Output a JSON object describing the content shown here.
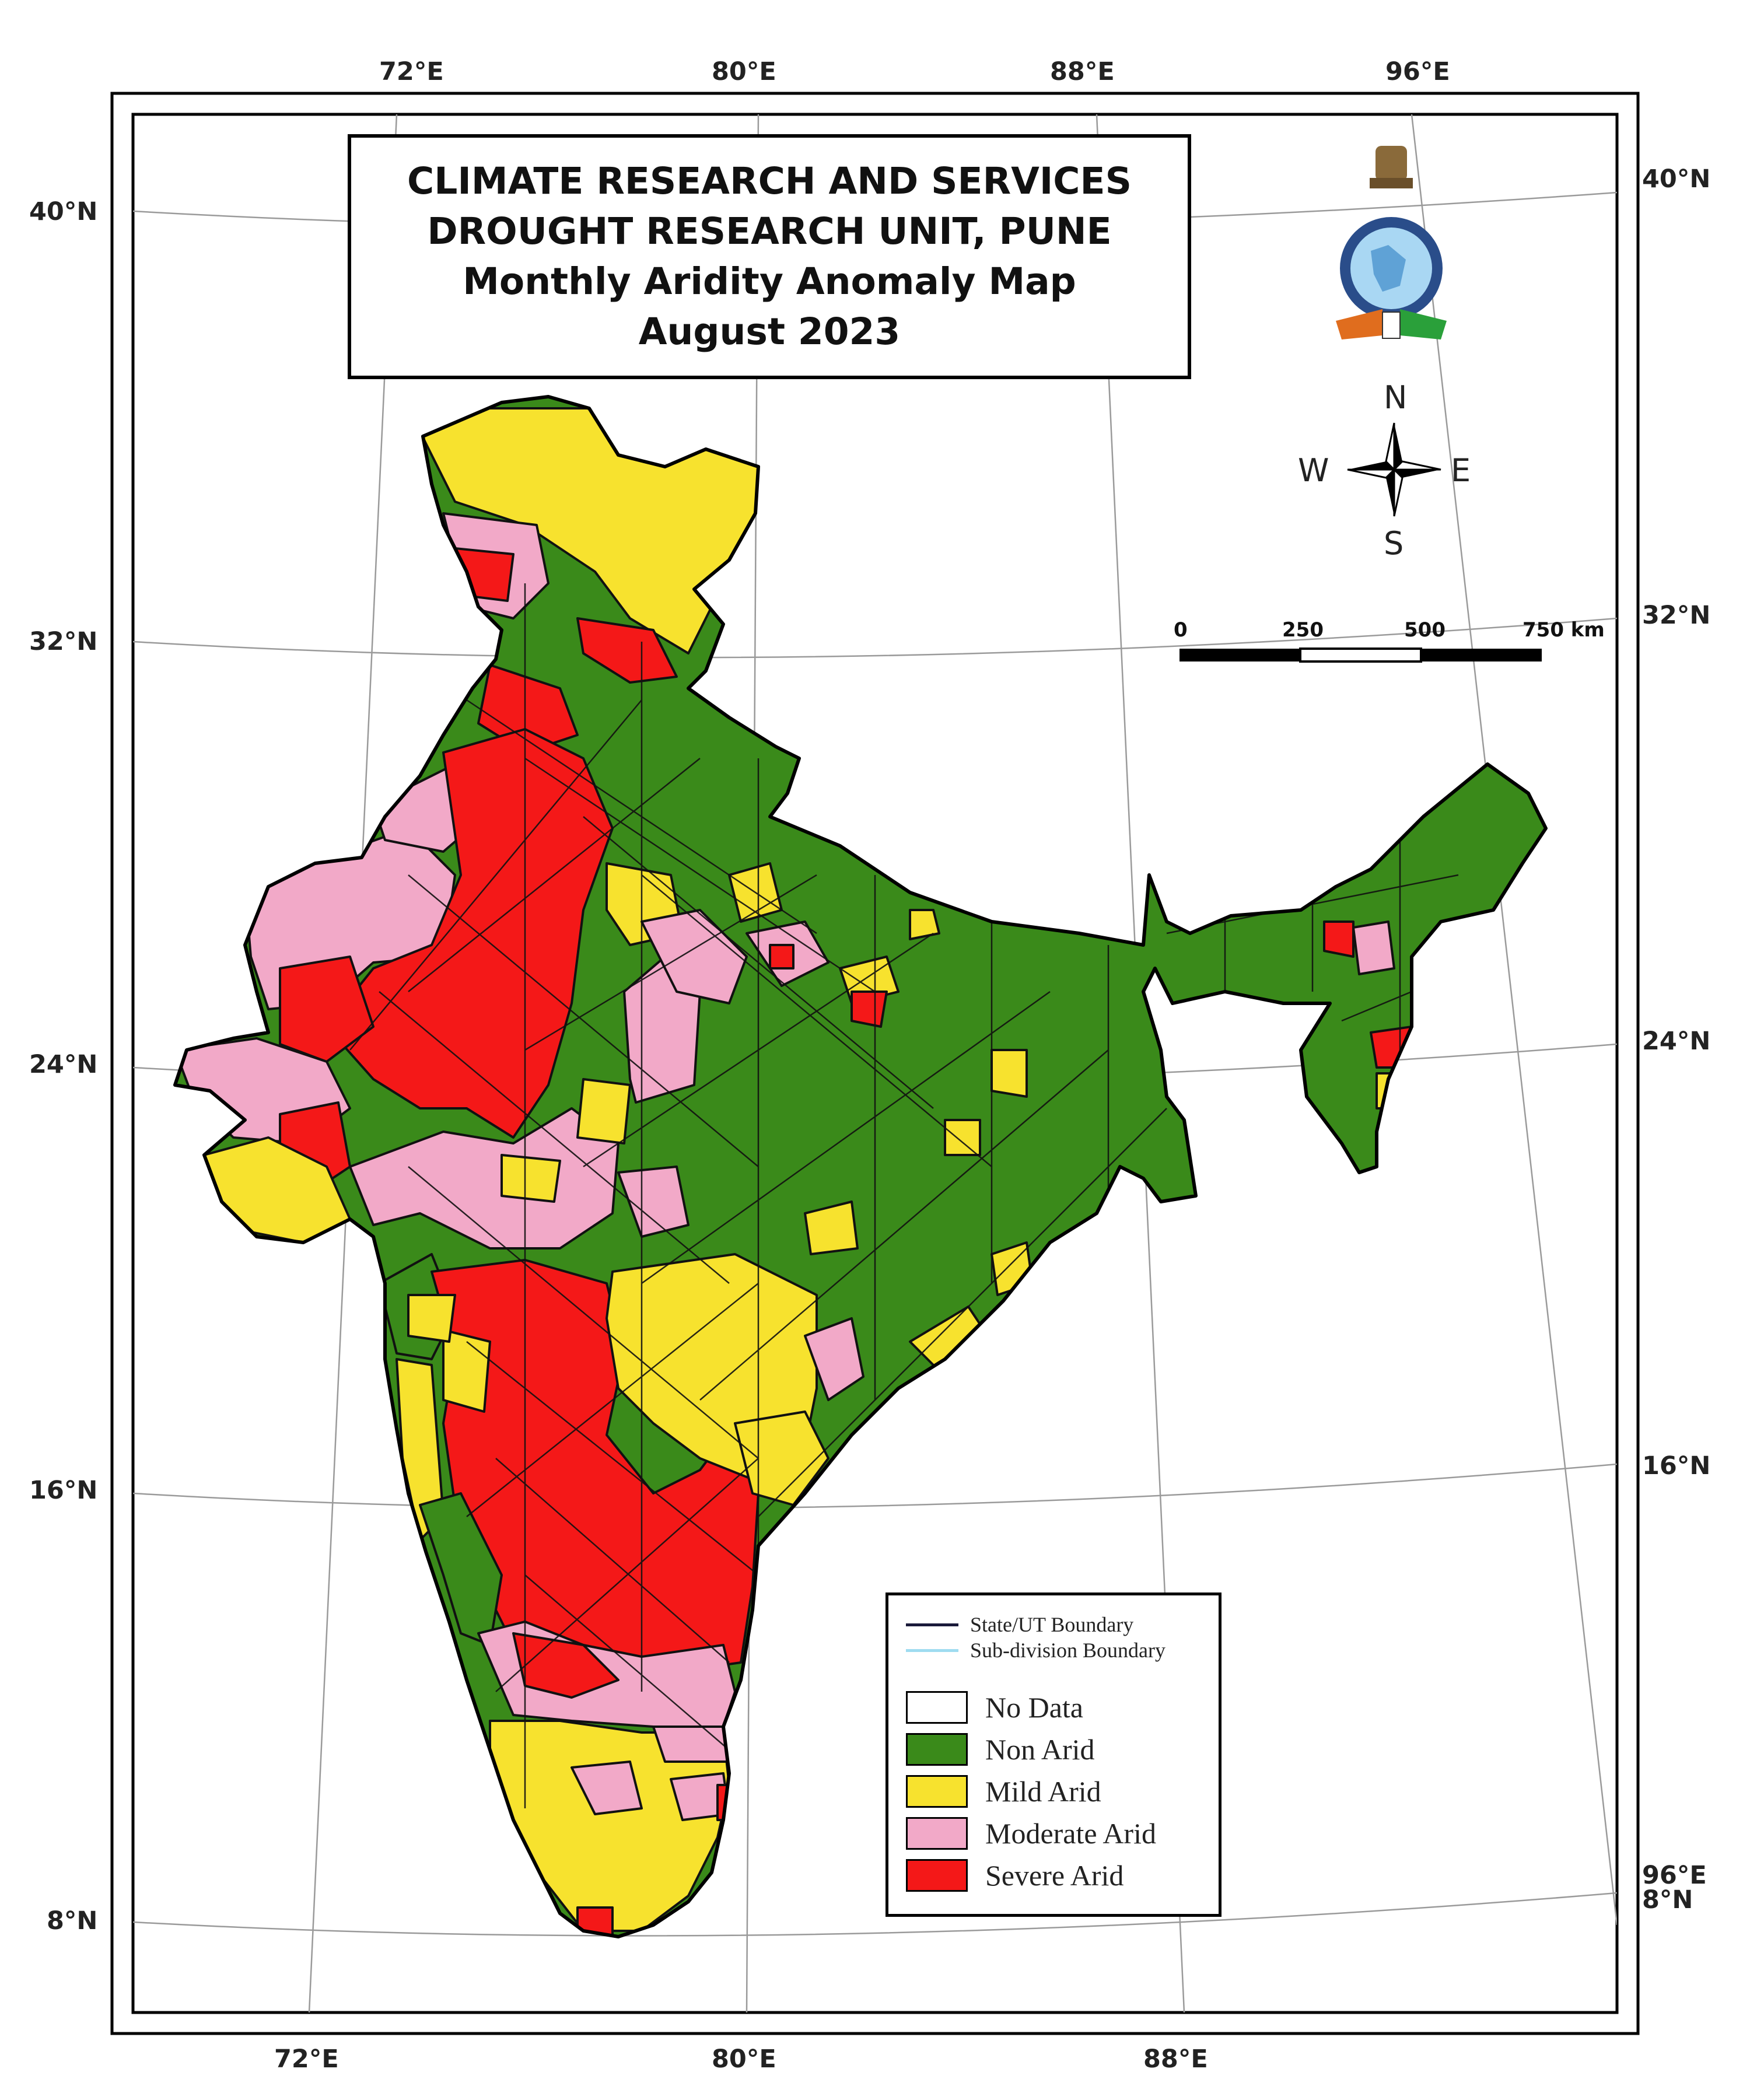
{
  "title": {
    "line1": "CLIMATE RESEARCH AND SERVICES",
    "line2": "DROUGHT RESEARCH UNIT, PUNE",
    "line3": "Monthly Aridity Anomaly Map",
    "line4": "August 2023"
  },
  "graticule": {
    "top_longitudes": [
      "72°E",
      "80°E",
      "88°E",
      "96°E"
    ],
    "bottom_longitudes": [
      "72°E",
      "80°E",
      "88°E"
    ],
    "left_latitudes": [
      "40°N",
      "32°N",
      "24°N",
      "16°N",
      "8°N"
    ],
    "right_latitudes": [
      "40°N",
      "32°N",
      "24°N",
      "16°N",
      "8°N"
    ],
    "right_extra_longitude": "96°E"
  },
  "compass": {
    "n": "N",
    "s": "S",
    "e": "E",
    "w": "W"
  },
  "scale_bar": {
    "labels": [
      "0",
      "250",
      "500",
      "750 km"
    ]
  },
  "legend": {
    "lines": [
      {
        "label": "State/UT Boundary",
        "color": "#1a1a3a"
      },
      {
        "label": "Sub-division Boundary",
        "color": "#9fdcf0"
      }
    ],
    "classes": [
      {
        "label": "No Data",
        "color": "#ffffff"
      },
      {
        "label": "Non Arid",
        "color": "#3a8a1a"
      },
      {
        "label": "Mild Arid",
        "color": "#f7e22e"
      },
      {
        "label": "Moderate Arid",
        "color": "#f2a9c8"
      },
      {
        "label": "Severe Arid",
        "color": "#f41818"
      }
    ]
  },
  "emblem": {
    "icon": "imd-emblem-icon"
  }
}
